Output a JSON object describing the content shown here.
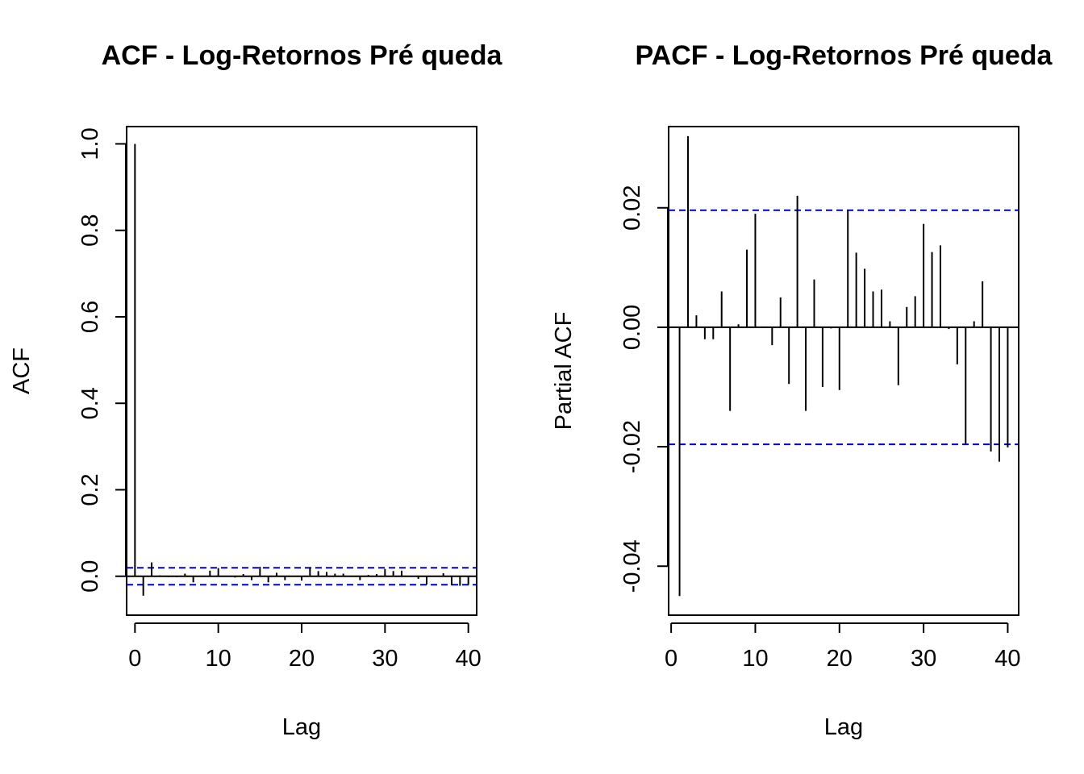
{
  "chart_data": [
    {
      "type": "bar",
      "title": "ACF - Log-Retornos Pré queda",
      "xlabel": "Lag",
      "ylabel": "ACF",
      "xlim": [
        -1,
        41
      ],
      "ylim": [
        -0.09,
        1.04
      ],
      "xticks": [
        "0",
        "10",
        "20",
        "30",
        "40"
      ],
      "yticks": [
        "0.0",
        "0.2",
        "0.4",
        "0.6",
        "0.8",
        "1.0"
      ],
      "confidence_band": 0.0195,
      "band_color": "#0000cc",
      "lags": [
        0,
        1,
        2,
        3,
        4,
        5,
        6,
        7,
        8,
        9,
        10,
        11,
        12,
        13,
        14,
        15,
        16,
        17,
        18,
        19,
        20,
        21,
        22,
        23,
        24,
        25,
        26,
        27,
        28,
        29,
        30,
        31,
        32,
        33,
        34,
        35,
        36,
        37,
        38,
        39,
        40
      ],
      "values": [
        1.0,
        -0.045,
        0.032,
        0.002,
        -0.002,
        -0.002,
        0.006,
        -0.014,
        0.001,
        0.013,
        0.019,
        0.0,
        -0.003,
        0.005,
        -0.009,
        0.022,
        -0.014,
        0.008,
        -0.009,
        0.0,
        -0.01,
        0.02,
        0.012,
        0.01,
        0.006,
        0.006,
        0.001,
        -0.009,
        0.003,
        0.005,
        0.017,
        0.012,
        0.013,
        -0.001,
        -0.006,
        -0.019,
        0.001,
        0.007,
        -0.021,
        -0.022,
        -0.02
      ]
    },
    {
      "type": "bar",
      "title": "PACF - Log-Retornos Pré queda",
      "xlabel": "Lag",
      "ylabel": "Partial ACF",
      "xlim": [
        -0.3,
        41.3
      ],
      "ylim": [
        -0.0482,
        0.0336
      ],
      "xticks": [
        "0",
        "10",
        "20",
        "30",
        "40"
      ],
      "yticks": [
        "-0.04",
        "-0.02",
        "0.00",
        "0.02"
      ],
      "confidence_band": 0.0196,
      "band_color": "#0000cc",
      "lags": [
        1,
        2,
        3,
        4,
        5,
        6,
        7,
        8,
        9,
        10,
        11,
        12,
        13,
        14,
        15,
        16,
        17,
        18,
        19,
        20,
        21,
        22,
        23,
        24,
        25,
        26,
        27,
        28,
        29,
        30,
        31,
        32,
        33,
        34,
        35,
        36,
        37,
        38,
        39,
        40
      ],
      "values": [
        -0.045,
        0.032,
        0.002,
        -0.002,
        -0.002,
        0.006,
        -0.014,
        0.0005,
        0.013,
        0.019,
        0.0,
        -0.003,
        0.005,
        -0.0095,
        0.022,
        -0.014,
        0.008,
        -0.01,
        -0.0002,
        -0.0105,
        0.0195,
        0.0125,
        0.0098,
        0.006,
        0.0063,
        0.001,
        -0.0097,
        0.0034,
        0.0052,
        0.0173,
        0.0126,
        0.0137,
        -0.0003,
        -0.0062,
        -0.0195,
        0.001,
        0.0077,
        -0.0208,
        -0.0225,
        -0.0201
      ]
    }
  ]
}
